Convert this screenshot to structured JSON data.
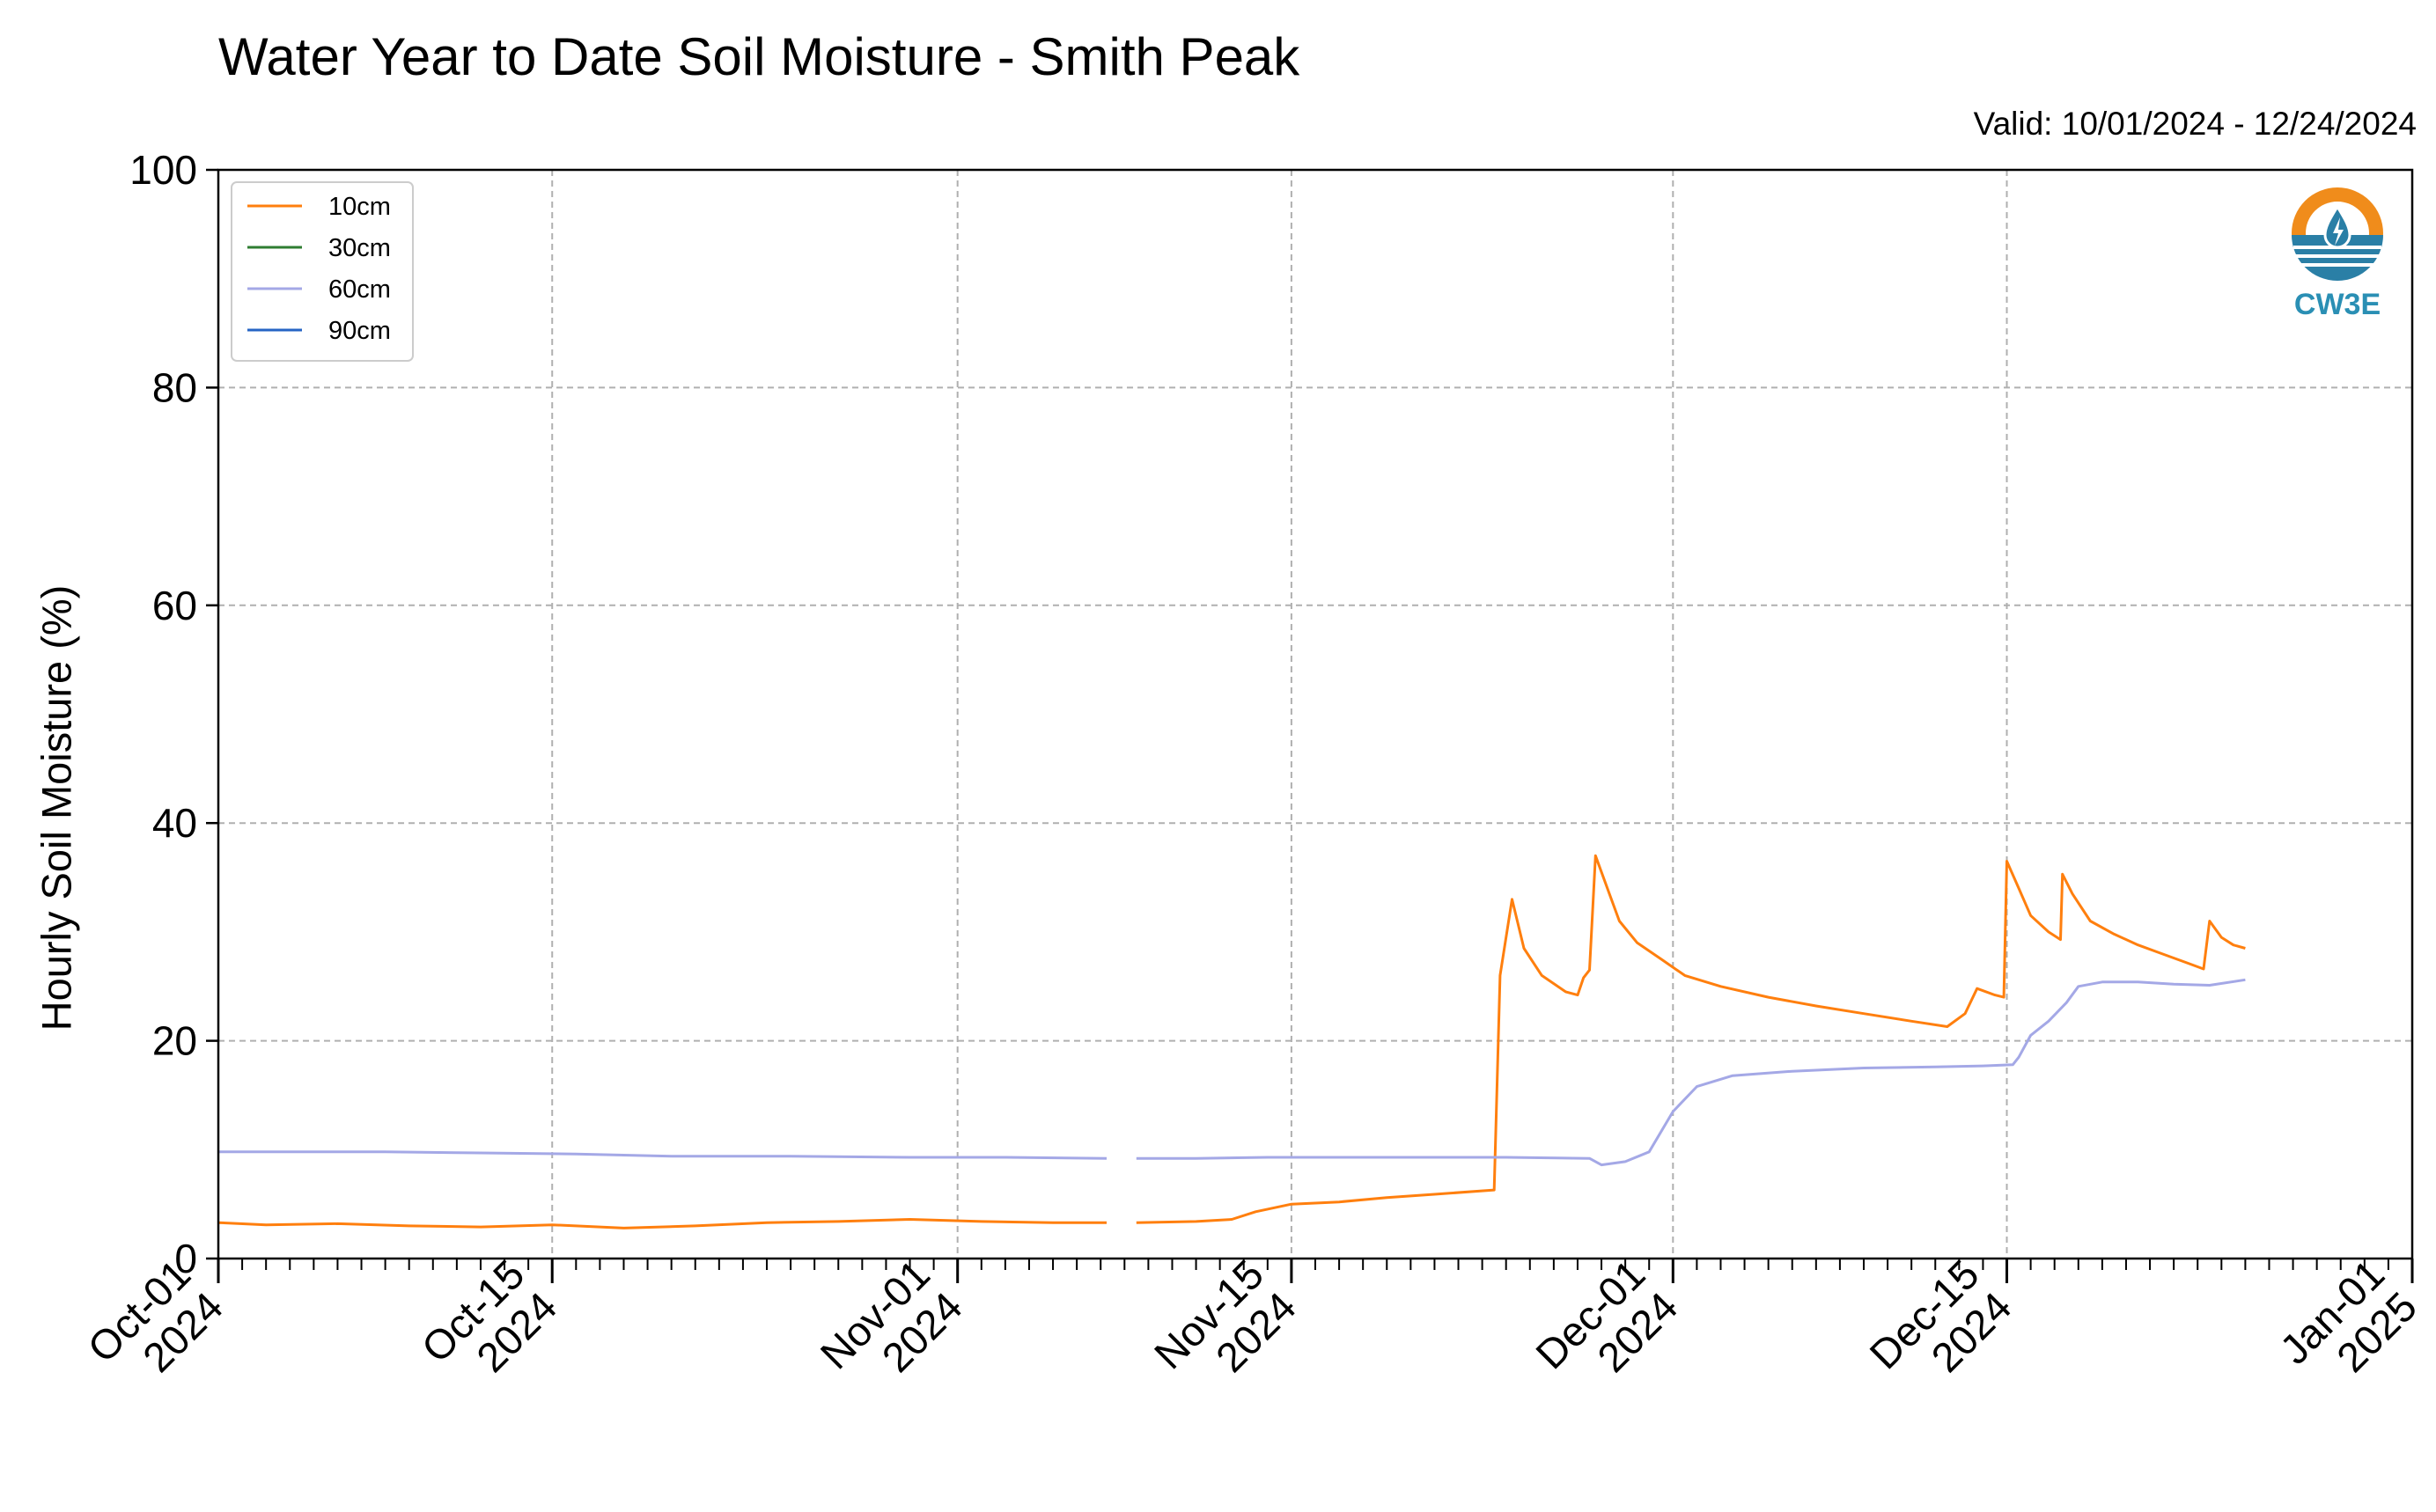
{
  "chart_data": {
    "type": "line",
    "title": "Water Year to Date Soil Moisture - Smith Peak",
    "subtitle": "Valid: 10/01/2024 - 12/24/2024",
    "ylabel": "Hourly Soil Moisture (%)",
    "xlabel": "",
    "ylim": [
      0,
      100
    ],
    "xlim": [
      "2024-10-01",
      "2025-01-01"
    ],
    "y_ticks": [
      "0",
      "20",
      "40",
      "60",
      "80",
      "100"
    ],
    "x_ticks": [
      {
        "date": "2024-10-01",
        "l1": "Oct-01",
        "l2": "2024"
      },
      {
        "date": "2024-10-15",
        "l1": "Oct-15",
        "l2": "2024"
      },
      {
        "date": "2024-11-01",
        "l1": "Nov-01",
        "l2": "2024"
      },
      {
        "date": "2024-11-15",
        "l1": "Nov-15",
        "l2": "2024"
      },
      {
        "date": "2024-12-01",
        "l1": "Dec-01",
        "l2": "2024"
      },
      {
        "date": "2024-12-15",
        "l1": "Dec-15",
        "l2": "2024"
      },
      {
        "date": "2025-01-01",
        "l1": "Jan-01",
        "l2": "2025"
      }
    ],
    "grid": true,
    "legend_position": "top-left",
    "series": [
      {
        "name": "10cm",
        "color": "#ff7f0e",
        "segments": [
          [
            [
              "2024-10-01T00",
              3.3
            ],
            [
              "2024-10-03T00",
              3.1
            ],
            [
              "2024-10-06T00",
              3.2
            ],
            [
              "2024-10-09T00",
              3.0
            ],
            [
              "2024-10-12T00",
              2.9
            ],
            [
              "2024-10-15T00",
              3.1
            ],
            [
              "2024-10-18T00",
              2.8
            ],
            [
              "2024-10-21T00",
              3.0
            ],
            [
              "2024-10-24T00",
              3.3
            ],
            [
              "2024-10-27T00",
              3.4
            ],
            [
              "2024-10-30T00",
              3.6
            ],
            [
              "2024-11-02T00",
              3.4
            ],
            [
              "2024-11-05T00",
              3.3
            ],
            [
              "2024-11-07T06",
              3.3
            ]
          ],
          [
            [
              "2024-11-08T12",
              3.3
            ],
            [
              "2024-11-11T00",
              3.4
            ],
            [
              "2024-11-12T12",
              3.6
            ],
            [
              "2024-11-13T12",
              4.3
            ],
            [
              "2024-11-15T00",
              5.0
            ],
            [
              "2024-11-17T00",
              5.2
            ],
            [
              "2024-11-19T00",
              5.6
            ],
            [
              "2024-11-21T00",
              5.9
            ],
            [
              "2024-11-23T12",
              6.3
            ],
            [
              "2024-11-23T18",
              26.0
            ],
            [
              "2024-11-24T06",
              33.0
            ],
            [
              "2024-11-24T18",
              28.5
            ],
            [
              "2024-11-25T12",
              26.0
            ],
            [
              "2024-11-26T12",
              24.5
            ],
            [
              "2024-11-27T00",
              24.2
            ],
            [
              "2024-11-27T06",
              25.8
            ],
            [
              "2024-11-27T12",
              26.5
            ],
            [
              "2024-11-27T18",
              37.0
            ],
            [
              "2024-11-28T06",
              34.0
            ],
            [
              "2024-11-28T18",
              31.0
            ],
            [
              "2024-11-29T12",
              29.0
            ],
            [
              "2024-11-30T12",
              27.5
            ],
            [
              "2024-12-01T12",
              26.0
            ],
            [
              "2024-12-03T00",
              25.0
            ],
            [
              "2024-12-05T00",
              24.0
            ],
            [
              "2024-12-07T00",
              23.2
            ],
            [
              "2024-12-09T00",
              22.5
            ],
            [
              "2024-12-11T00",
              21.8
            ],
            [
              "2024-12-12T12",
              21.3
            ],
            [
              "2024-12-13T06",
              22.5
            ],
            [
              "2024-12-13T18",
              24.8
            ],
            [
              "2024-12-14T12",
              24.2
            ],
            [
              "2024-12-14T21",
              24.0
            ],
            [
              "2024-12-15T00",
              36.5
            ],
            [
              "2024-12-15T12",
              34.0
            ],
            [
              "2024-12-16T00",
              31.5
            ],
            [
              "2024-12-16T18",
              30.0
            ],
            [
              "2024-12-17T06",
              29.3
            ],
            [
              "2024-12-17T08",
              35.3
            ],
            [
              "2024-12-17T18",
              33.5
            ],
            [
              "2024-12-18T12",
              31.0
            ],
            [
              "2024-12-19T12",
              29.8
            ],
            [
              "2024-12-20T12",
              28.8
            ],
            [
              "2024-12-21T12",
              28.0
            ],
            [
              "2024-12-22T12",
              27.2
            ],
            [
              "2024-12-23T06",
              26.6
            ],
            [
              "2024-12-23T12",
              31.0
            ],
            [
              "2024-12-24T00",
              29.5
            ],
            [
              "2024-12-24T12",
              28.8
            ],
            [
              "2024-12-25T00",
              28.5
            ]
          ]
        ]
      },
      {
        "name": "30cm",
        "color": "#2f7d32",
        "segments": []
      },
      {
        "name": "60cm",
        "color": "#a4a8e6",
        "segments": [
          [
            [
              "2024-10-01T00",
              9.8
            ],
            [
              "2024-10-04T00",
              9.8
            ],
            [
              "2024-10-08T00",
              9.8
            ],
            [
              "2024-10-12T00",
              9.7
            ],
            [
              "2024-10-16T00",
              9.6
            ],
            [
              "2024-10-20T00",
              9.4
            ],
            [
              "2024-10-25T00",
              9.4
            ],
            [
              "2024-10-30T00",
              9.3
            ],
            [
              "2024-11-03T00",
              9.3
            ],
            [
              "2024-11-07T06",
              9.2
            ]
          ],
          [
            [
              "2024-11-08T12",
              9.2
            ],
            [
              "2024-11-11T00",
              9.2
            ],
            [
              "2024-11-14T00",
              9.3
            ],
            [
              "2024-11-18T00",
              9.3
            ],
            [
              "2024-11-22T00",
              9.3
            ],
            [
              "2024-11-24T00",
              9.3
            ],
            [
              "2024-11-27T12",
              9.2
            ],
            [
              "2024-11-28T00",
              8.6
            ],
            [
              "2024-11-29T00",
              8.9
            ],
            [
              "2024-11-30T00",
              9.8
            ],
            [
              "2024-12-01T00",
              13.5
            ],
            [
              "2024-12-02T00",
              15.8
            ],
            [
              "2024-12-03T12",
              16.8
            ],
            [
              "2024-12-06T00",
              17.2
            ],
            [
              "2024-12-09T00",
              17.5
            ],
            [
              "2024-12-12T00",
              17.6
            ],
            [
              "2024-12-14T00",
              17.7
            ],
            [
              "2024-12-15T06",
              17.8
            ],
            [
              "2024-12-15T12",
              18.5
            ],
            [
              "2024-12-16T00",
              20.5
            ],
            [
              "2024-12-16T18",
              21.8
            ],
            [
              "2024-12-17T12",
              23.5
            ],
            [
              "2024-12-18T00",
              25.0
            ],
            [
              "2024-12-19T00",
              25.4
            ],
            [
              "2024-12-20T12",
              25.4
            ],
            [
              "2024-12-22T00",
              25.2
            ],
            [
              "2024-12-23T12",
              25.1
            ],
            [
              "2024-12-25T00",
              25.6
            ]
          ]
        ]
      },
      {
        "name": "90cm",
        "color": "#2664c4",
        "segments": []
      }
    ]
  }
}
